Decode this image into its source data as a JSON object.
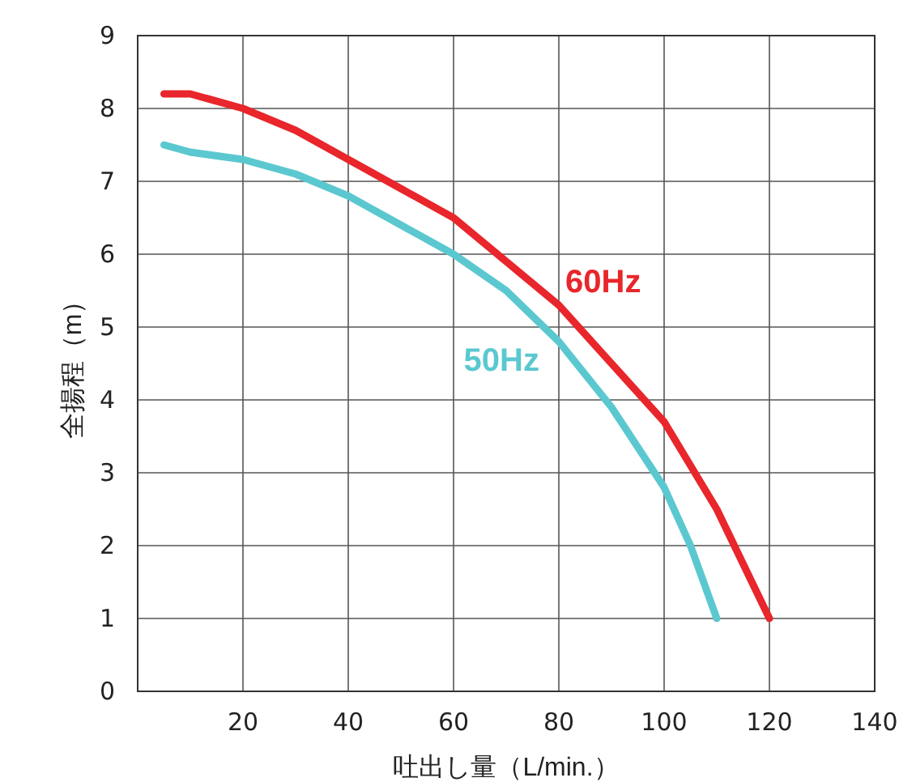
{
  "chart_data": {
    "type": "line",
    "xlabel": "吐出し量（L/min.）",
    "ylabel": "全揚程（m）",
    "xlim": [
      0,
      140
    ],
    "xticks": [
      20,
      40,
      60,
      80,
      100,
      120,
      140
    ],
    "ylim": [
      0,
      9
    ],
    "yticks": [
      0,
      1,
      2,
      3,
      4,
      5,
      6,
      7,
      8,
      9
    ],
    "grid": true,
    "legend": false,
    "marker": "none",
    "line_style": "solid",
    "series": [
      {
        "name": "60Hz",
        "color": "#e8262b",
        "x": [
          5,
          10,
          20,
          30,
          40,
          50,
          60,
          70,
          80,
          90,
          100,
          110,
          120
        ],
        "values": [
          8.2,
          8.2,
          8.0,
          7.7,
          7.3,
          6.9,
          6.5,
          5.9,
          5.3,
          4.5,
          3.7,
          2.5,
          1.0
        ]
      },
      {
        "name": "50Hz",
        "color": "#5bc8d0",
        "x": [
          5,
          10,
          20,
          30,
          40,
          50,
          60,
          70,
          80,
          90,
          100,
          105,
          110
        ],
        "values": [
          7.5,
          7.4,
          7.3,
          7.1,
          6.8,
          6.4,
          6.0,
          5.5,
          4.8,
          3.9,
          2.8,
          2.0,
          1.0
        ]
      }
    ]
  }
}
